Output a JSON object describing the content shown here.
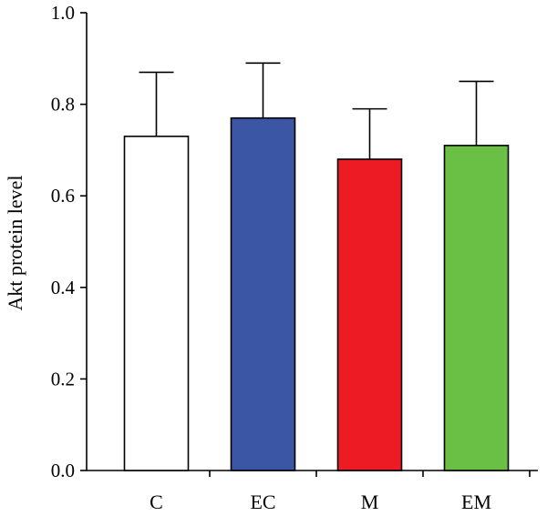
{
  "chart_data": {
    "type": "bar",
    "categories": [
      "C",
      "EC",
      "M",
      "EM"
    ],
    "values": [
      0.73,
      0.77,
      0.68,
      0.71
    ],
    "error_upper": [
      0.87,
      0.89,
      0.79,
      0.85
    ],
    "colors": [
      "#ffffff",
      "#3a56a5",
      "#ed1c24",
      "#6abf45"
    ],
    "title": "",
    "xlabel": "",
    "ylabel": "Akt protein level",
    "ylim": [
      0,
      1.0
    ],
    "yticks": [
      0.0,
      0.2,
      0.4,
      0.6,
      0.8,
      1.0
    ],
    "ytick_labels": [
      "0.0",
      "0.2",
      "0.4",
      "0.6",
      "0.8",
      "1.0"
    ],
    "grid": false,
    "legend": "none"
  }
}
